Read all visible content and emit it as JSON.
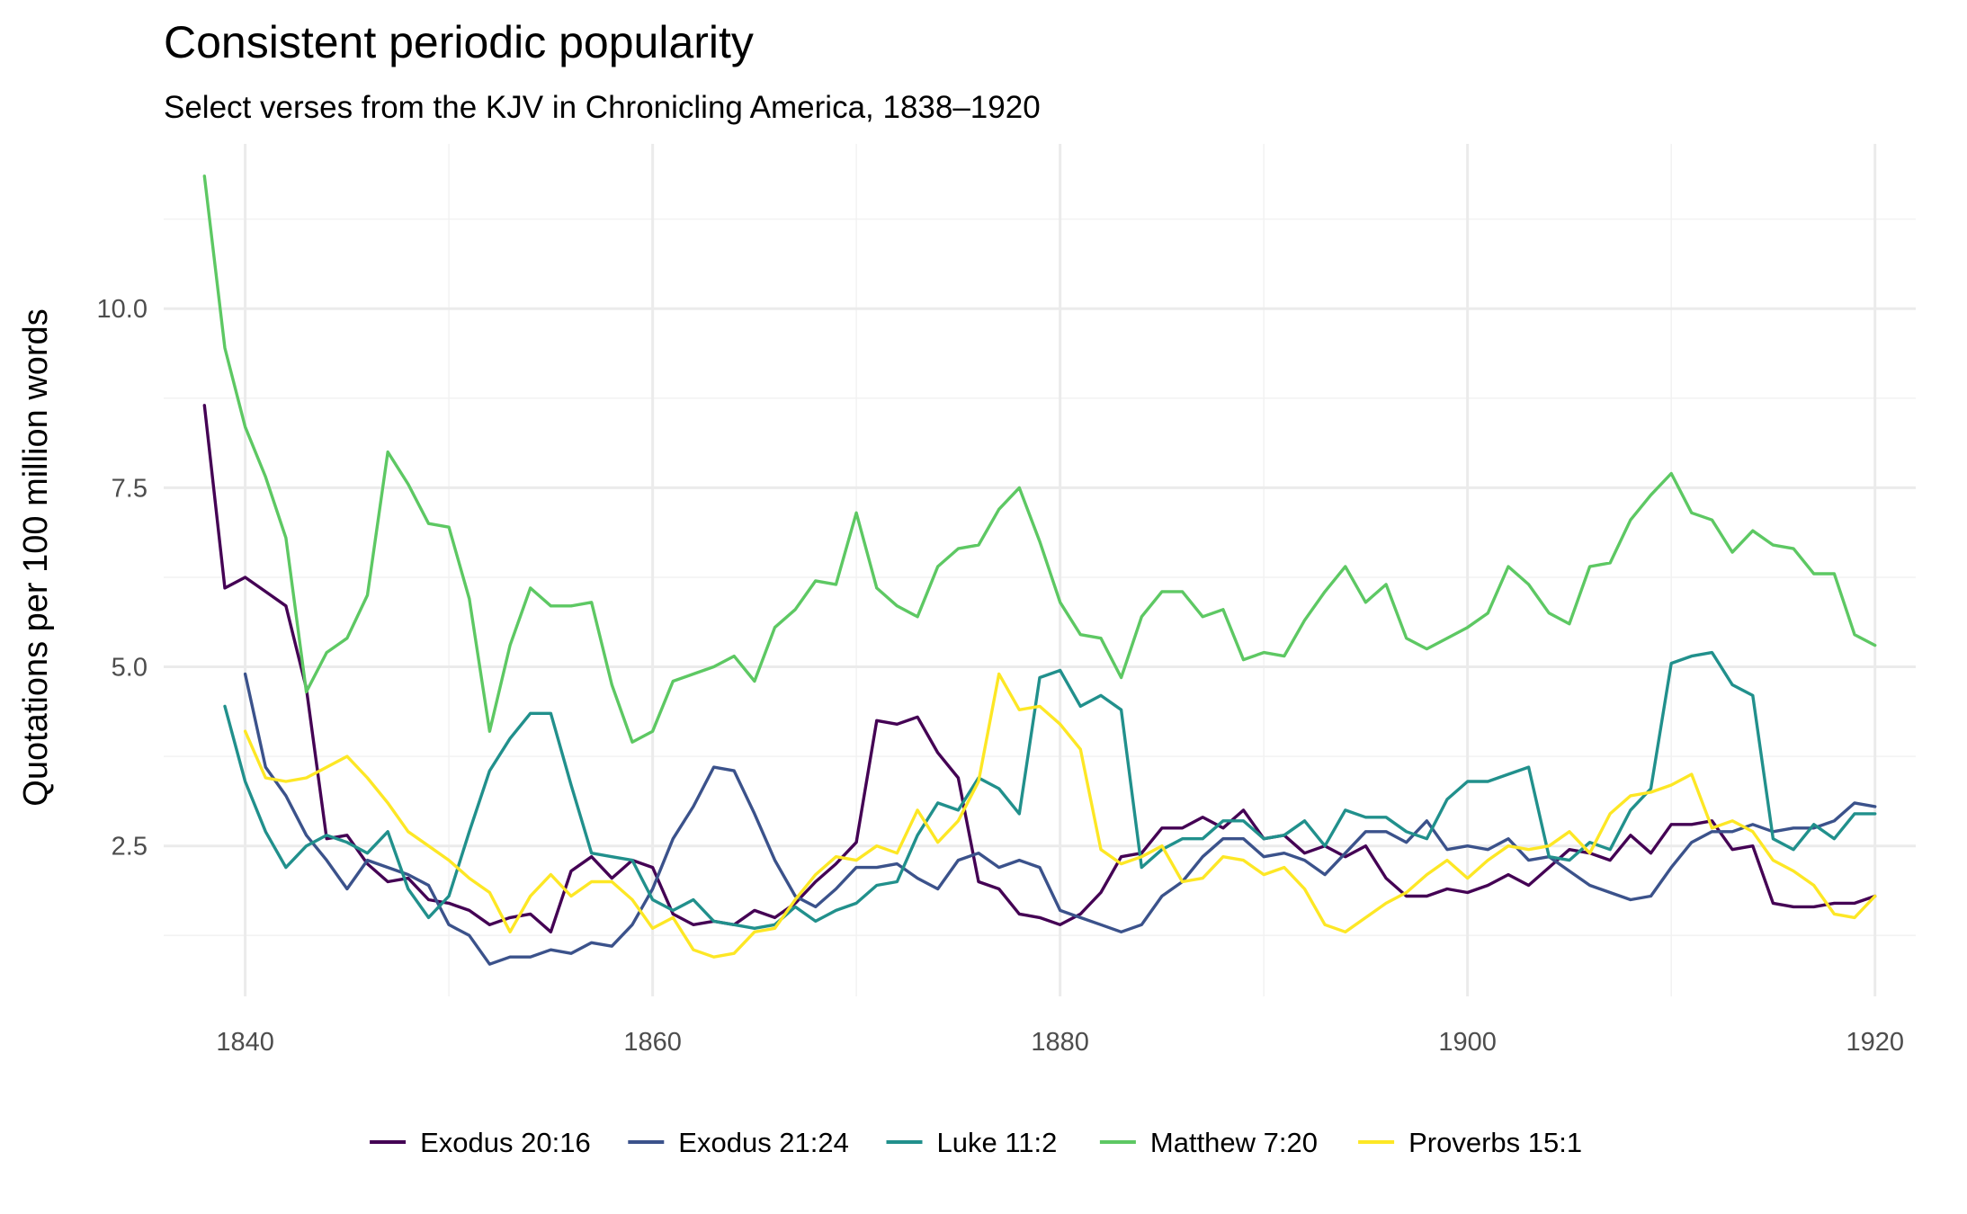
{
  "chart_data": {
    "type": "line",
    "title": "Consistent periodic popularity",
    "subtitle": "Select verses from the KJV in Chronicling America, 1838–1920",
    "xlabel": "",
    "ylabel": "Quotations per 100 million words",
    "xlim": [
      1836,
      1922
    ],
    "ylim": [
      0.4,
      12.3
    ],
    "x_ticks": [
      1840,
      1860,
      1880,
      1900,
      1920
    ],
    "y_ticks": [
      2.5,
      5.0,
      7.5,
      10.0
    ],
    "y_tick_labels": [
      "2.5",
      "5.0",
      "7.5",
      "10.0"
    ],
    "grid": true,
    "legend_position": "bottom",
    "series": [
      {
        "name": "Exodus 20:16",
        "color": "#440154",
        "x": [
          1838,
          1839,
          1840,
          1841,
          1842,
          1843,
          1844,
          1845,
          1846,
          1847,
          1848,
          1849,
          1850,
          1851,
          1852,
          1853,
          1854,
          1855,
          1856,
          1857,
          1858,
          1859,
          1860,
          1861,
          1862,
          1863,
          1864,
          1865,
          1866,
          1867,
          1868,
          1869,
          1870,
          1871,
          1872,
          1873,
          1874,
          1875,
          1876,
          1877,
          1878,
          1879,
          1880,
          1881,
          1882,
          1883,
          1884,
          1885,
          1886,
          1887,
          1888,
          1889,
          1890,
          1891,
          1892,
          1893,
          1894,
          1895,
          1896,
          1897,
          1898,
          1899,
          1900,
          1901,
          1902,
          1903,
          1904,
          1905,
          1906,
          1907,
          1908,
          1909,
          1910,
          1911,
          1912,
          1913,
          1914,
          1915,
          1916,
          1917,
          1918,
          1919,
          1920
        ],
        "values": [
          8.65,
          6.1,
          6.25,
          6.05,
          5.85,
          4.7,
          2.6,
          2.65,
          2.25,
          2.0,
          2.05,
          1.75,
          1.7,
          1.6,
          1.4,
          1.5,
          1.55,
          1.3,
          2.15,
          2.35,
          2.05,
          2.3,
          2.2,
          1.55,
          1.4,
          1.45,
          1.4,
          1.6,
          1.5,
          1.7,
          2.0,
          2.25,
          2.55,
          4.25,
          4.2,
          4.3,
          3.8,
          3.45,
          2.0,
          1.9,
          1.55,
          1.5,
          1.4,
          1.55,
          1.85,
          2.35,
          2.4,
          2.75,
          2.75,
          2.9,
          2.75,
          3.0,
          2.6,
          2.65,
          2.4,
          2.5,
          2.35,
          2.5,
          2.05,
          1.8,
          1.8,
          1.9,
          1.85,
          1.95,
          2.1,
          1.95,
          2.2,
          2.45,
          2.4,
          2.3,
          2.65,
          2.4,
          2.8,
          2.8,
          2.85,
          2.45,
          2.5,
          1.7,
          1.65,
          1.65,
          1.7,
          1.7,
          1.8
        ]
      },
      {
        "name": "Exodus 21:24",
        "color": "#3b528b",
        "x": [
          1840,
          1841,
          1842,
          1843,
          1844,
          1845,
          1846,
          1847,
          1848,
          1849,
          1850,
          1851,
          1852,
          1853,
          1854,
          1855,
          1856,
          1857,
          1858,
          1859,
          1860,
          1861,
          1862,
          1863,
          1864,
          1865,
          1866,
          1867,
          1868,
          1869,
          1870,
          1871,
          1872,
          1873,
          1874,
          1875,
          1876,
          1877,
          1878,
          1879,
          1880,
          1881,
          1882,
          1883,
          1884,
          1885,
          1886,
          1887,
          1888,
          1889,
          1890,
          1891,
          1892,
          1893,
          1894,
          1895,
          1896,
          1897,
          1898,
          1899,
          1900,
          1901,
          1902,
          1903,
          1904,
          1905,
          1906,
          1907,
          1908,
          1909,
          1910,
          1911,
          1912,
          1913,
          1914,
          1915,
          1916,
          1917,
          1918,
          1919,
          1920
        ],
        "values": [
          4.9,
          3.6,
          3.2,
          2.65,
          2.3,
          1.9,
          2.3,
          2.2,
          2.1,
          1.95,
          1.4,
          1.25,
          0.85,
          0.95,
          0.95,
          1.05,
          1.0,
          1.15,
          1.1,
          1.4,
          1.9,
          2.6,
          3.05,
          3.6,
          3.55,
          2.95,
          2.3,
          1.8,
          1.65,
          1.9,
          2.2,
          2.2,
          2.25,
          2.05,
          1.9,
          2.3,
          2.4,
          2.2,
          2.3,
          2.2,
          1.6,
          1.5,
          1.4,
          1.3,
          1.4,
          1.8,
          2.0,
          2.35,
          2.6,
          2.6,
          2.35,
          2.4,
          2.3,
          2.1,
          2.4,
          2.7,
          2.7,
          2.55,
          2.85,
          2.45,
          2.5,
          2.45,
          2.6,
          2.3,
          2.35,
          2.15,
          1.95,
          1.85,
          1.75,
          1.8,
          2.2,
          2.55,
          2.7,
          2.7,
          2.8,
          2.7,
          2.75,
          2.75,
          2.85,
          3.1,
          3.05
        ]
      },
      {
        "name": "Luke 11:2",
        "color": "#21908c",
        "x": [
          1839,
          1840,
          1841,
          1842,
          1843,
          1844,
          1845,
          1846,
          1847,
          1848,
          1849,
          1850,
          1851,
          1852,
          1853,
          1854,
          1855,
          1856,
          1857,
          1858,
          1859,
          1860,
          1861,
          1862,
          1863,
          1864,
          1865,
          1866,
          1867,
          1868,
          1869,
          1870,
          1871,
          1872,
          1873,
          1874,
          1875,
          1876,
          1877,
          1878,
          1879,
          1880,
          1881,
          1882,
          1883,
          1884,
          1885,
          1886,
          1887,
          1888,
          1889,
          1890,
          1891,
          1892,
          1893,
          1894,
          1895,
          1896,
          1897,
          1898,
          1899,
          1900,
          1901,
          1902,
          1903,
          1904,
          1905,
          1906,
          1907,
          1908,
          1909,
          1910,
          1911,
          1912,
          1913,
          1914,
          1915,
          1916,
          1917,
          1918,
          1919,
          1920
        ],
        "values": [
          4.45,
          3.4,
          2.7,
          2.2,
          2.5,
          2.65,
          2.55,
          2.4,
          2.7,
          1.9,
          1.5,
          1.8,
          2.7,
          3.55,
          4.0,
          4.35,
          4.35,
          3.35,
          2.4,
          2.35,
          2.3,
          1.75,
          1.6,
          1.75,
          1.45,
          1.4,
          1.35,
          1.4,
          1.65,
          1.45,
          1.6,
          1.7,
          1.95,
          2.0,
          2.65,
          3.1,
          3.0,
          3.45,
          3.3,
          2.95,
          4.85,
          4.95,
          4.45,
          4.6,
          4.4,
          2.2,
          2.45,
          2.6,
          2.6,
          2.85,
          2.85,
          2.6,
          2.65,
          2.85,
          2.5,
          3.0,
          2.9,
          2.9,
          2.7,
          2.6,
          3.15,
          3.4,
          3.4,
          3.5,
          3.6,
          2.35,
          2.3,
          2.55,
          2.45,
          3.0,
          3.3,
          5.05,
          5.15,
          5.2,
          4.75,
          4.6,
          2.6,
          2.45,
          2.8,
          2.6,
          2.95,
          2.95
        ]
      },
      {
        "name": "Matthew 7:20",
        "color": "#5dc863",
        "x": [
          1838,
          1839,
          1840,
          1841,
          1842,
          1843,
          1844,
          1845,
          1846,
          1847,
          1848,
          1849,
          1850,
          1851,
          1852,
          1853,
          1854,
          1855,
          1856,
          1857,
          1858,
          1859,
          1860,
          1861,
          1862,
          1863,
          1864,
          1865,
          1866,
          1867,
          1868,
          1869,
          1870,
          1871,
          1872,
          1873,
          1874,
          1875,
          1876,
          1877,
          1878,
          1879,
          1880,
          1881,
          1882,
          1883,
          1884,
          1885,
          1886,
          1887,
          1888,
          1889,
          1890,
          1891,
          1892,
          1893,
          1894,
          1895,
          1896,
          1897,
          1898,
          1899,
          1900,
          1901,
          1902,
          1903,
          1904,
          1905,
          1906,
          1907,
          1908,
          1909,
          1910,
          1911,
          1912,
          1913,
          1914,
          1915,
          1916,
          1917,
          1918,
          1919,
          1920
        ],
        "values": [
          11.85,
          9.45,
          8.35,
          7.65,
          6.8,
          4.65,
          5.2,
          5.4,
          6.0,
          8.0,
          7.55,
          7.0,
          6.95,
          5.95,
          4.1,
          5.3,
          6.1,
          5.85,
          5.85,
          5.9,
          4.75,
          3.95,
          4.1,
          4.8,
          4.9,
          5.0,
          5.15,
          4.8,
          5.55,
          5.8,
          6.2,
          6.15,
          7.15,
          6.1,
          5.85,
          5.7,
          6.4,
          6.65,
          6.7,
          7.2,
          7.5,
          6.75,
          5.9,
          5.45,
          5.4,
          4.85,
          5.7,
          6.05,
          6.05,
          5.7,
          5.8,
          5.1,
          5.2,
          5.15,
          5.65,
          6.05,
          6.4,
          5.9,
          6.15,
          5.4,
          5.25,
          5.4,
          5.55,
          5.75,
          6.4,
          6.15,
          5.75,
          5.6,
          6.4,
          6.45,
          7.05,
          7.4,
          7.7,
          7.15,
          7.05,
          6.6,
          6.9,
          6.7,
          6.65,
          6.3,
          6.3,
          5.45,
          5.3
        ]
      },
      {
        "name": "Proverbs 15:1",
        "color": "#fde725",
        "x": [
          1840,
          1841,
          1842,
          1843,
          1844,
          1845,
          1846,
          1847,
          1848,
          1849,
          1850,
          1851,
          1852,
          1853,
          1854,
          1855,
          1856,
          1857,
          1858,
          1859,
          1860,
          1861,
          1862,
          1863,
          1864,
          1865,
          1866,
          1867,
          1868,
          1869,
          1870,
          1871,
          1872,
          1873,
          1874,
          1875,
          1876,
          1877,
          1878,
          1879,
          1880,
          1881,
          1882,
          1883,
          1884,
          1885,
          1886,
          1887,
          1888,
          1889,
          1890,
          1891,
          1892,
          1893,
          1894,
          1895,
          1896,
          1897,
          1898,
          1899,
          1900,
          1901,
          1902,
          1903,
          1904,
          1905,
          1906,
          1907,
          1908,
          1909,
          1910,
          1911,
          1912,
          1913,
          1914,
          1915,
          1916,
          1917,
          1918,
          1919,
          1920
        ],
        "values": [
          4.1,
          3.45,
          3.4,
          3.45,
          3.6,
          3.75,
          3.45,
          3.1,
          2.7,
          2.5,
          2.3,
          2.05,
          1.85,
          1.3,
          1.8,
          2.1,
          1.8,
          2.0,
          2.0,
          1.75,
          1.35,
          1.5,
          1.05,
          0.95,
          1.0,
          1.3,
          1.35,
          1.75,
          2.1,
          2.35,
          2.3,
          2.5,
          2.4,
          3.0,
          2.55,
          2.85,
          3.4,
          4.9,
          4.4,
          4.45,
          4.2,
          3.85,
          2.45,
          2.25,
          2.35,
          2.5,
          2.0,
          2.05,
          2.35,
          2.3,
          2.1,
          2.2,
          1.9,
          1.4,
          1.3,
          1.5,
          1.7,
          1.85,
          2.1,
          2.3,
          2.05,
          2.3,
          2.5,
          2.45,
          2.5,
          2.7,
          2.4,
          2.95,
          3.2,
          3.25,
          3.35,
          3.5,
          2.75,
          2.85,
          2.7,
          2.3,
          2.15,
          1.95,
          1.55,
          1.5,
          1.8
        ]
      }
    ]
  }
}
